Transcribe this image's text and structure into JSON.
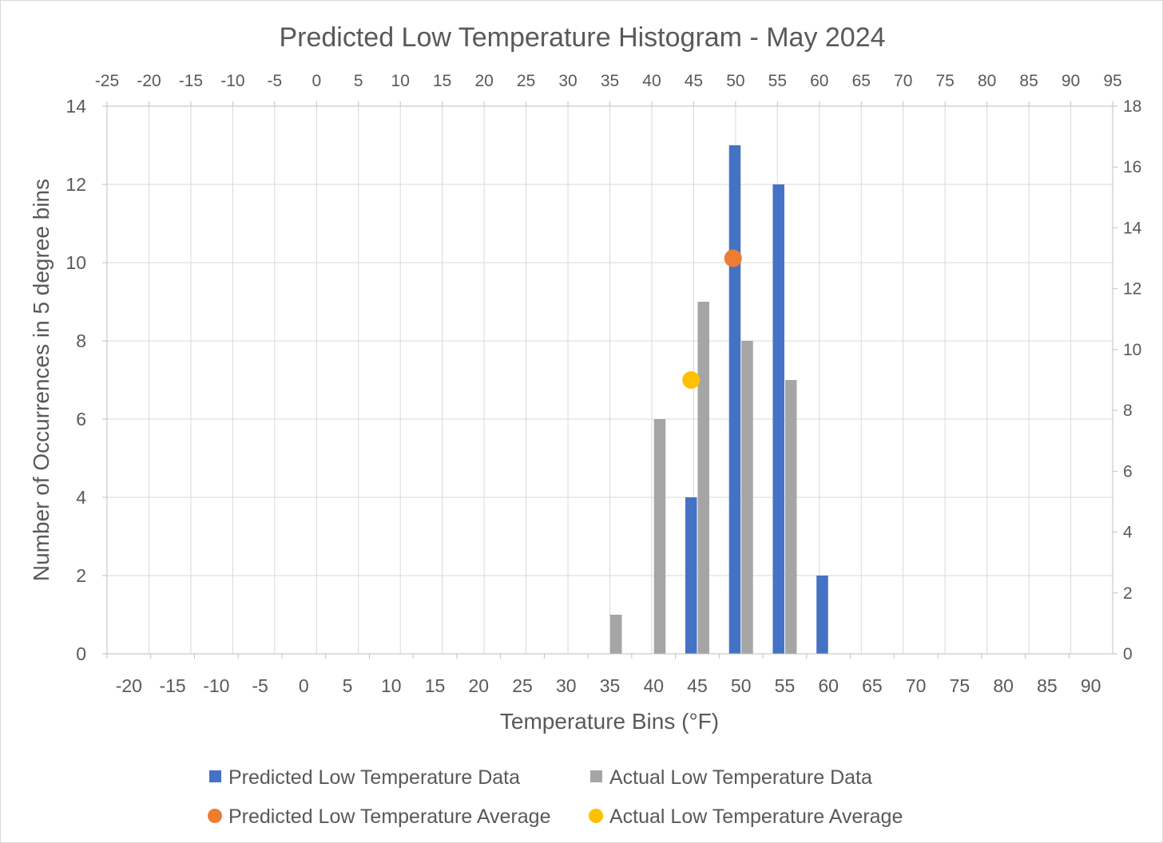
{
  "chart_data": {
    "type": "bar",
    "title": "Predicted Low Temperature Histogram - May 2024",
    "xlabel": "Temperature Bins (°F)",
    "ylabel": "Number of Occurrences in 5 degree bins",
    "categories": [
      "-20",
      "-15",
      "-10",
      "-5",
      "0",
      "5",
      "10",
      "15",
      "20",
      "25",
      "30",
      "35",
      "40",
      "45",
      "50",
      "55",
      "60",
      "65",
      "70",
      "75",
      "80",
      "85",
      "90"
    ],
    "ylim": [
      0,
      14
    ],
    "y_ticks": [
      0,
      2,
      4,
      6,
      8,
      10,
      12,
      14
    ],
    "secondary_ylim": [
      0,
      18
    ],
    "secondary_y_ticks": [
      0,
      2,
      4,
      6,
      8,
      10,
      12,
      14,
      16,
      18
    ],
    "secondary_xlim": [
      -25,
      95
    ],
    "secondary_x_ticks": [
      -25,
      -20,
      -15,
      -10,
      -5,
      0,
      5,
      10,
      15,
      20,
      25,
      30,
      35,
      40,
      45,
      50,
      55,
      60,
      65,
      70,
      75,
      80,
      85,
      90,
      95
    ],
    "grid": true,
    "legend_position": "bottom",
    "series": [
      {
        "name": "Predicted Low Temperature Data",
        "color": "#4472c4",
        "values": [
          0,
          0,
          0,
          0,
          0,
          0,
          0,
          0,
          0,
          0,
          0,
          0,
          0,
          4,
          13,
          12,
          2,
          0,
          0,
          0,
          0,
          0,
          0
        ]
      },
      {
        "name": "Actual Low Temperature Data",
        "color": "#a5a5a5",
        "values": [
          0,
          0,
          0,
          0,
          0,
          0,
          0,
          0,
          0,
          0,
          0,
          1,
          6,
          9,
          8,
          7,
          0,
          0,
          0,
          0,
          0,
          0,
          0
        ]
      }
    ],
    "scatter_series": [
      {
        "name": "Predicted Low Temperature Average",
        "color": "#ed7d31",
        "x": 49.7,
        "y": 13
      },
      {
        "name": "Actual Low Temperature Average",
        "color": "#ffc000",
        "x": 44.7,
        "y": 9
      }
    ]
  }
}
